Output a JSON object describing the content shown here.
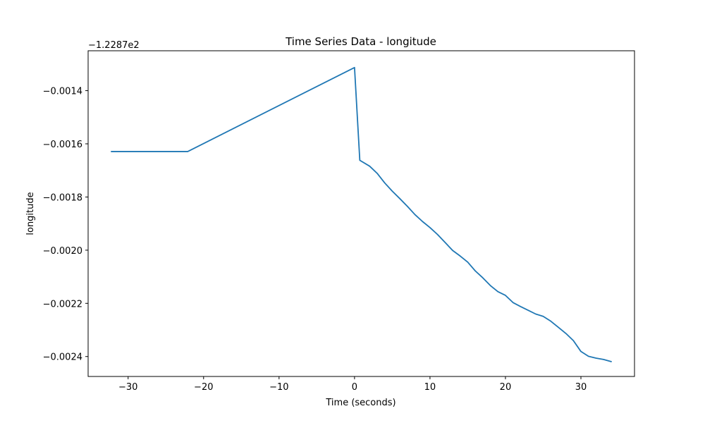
{
  "chart_data": {
    "type": "line",
    "title": "Time Series Data - longitude",
    "xlabel": "Time (seconds)",
    "ylabel": "longitude",
    "y_offset_label": "−1.2287e2",
    "xlim": [
      -35.3,
      37.1
    ],
    "ylim": [
      -0.002475,
      -0.00125
    ],
    "x_ticks": [
      -30,
      -20,
      -10,
      0,
      10,
      20,
      30
    ],
    "x_tick_labels": [
      "−30",
      "−20",
      "−10",
      "0",
      "10",
      "20",
      "30"
    ],
    "y_ticks": [
      -0.0014,
      -0.0016,
      -0.0018,
      -0.002,
      -0.0022,
      -0.0024
    ],
    "y_tick_labels": [
      "−0.0014",
      "−0.0016",
      "−0.0018",
      "−0.0020",
      "−0.0022",
      "−0.0024"
    ],
    "grid": false,
    "legend": "none",
    "series": [
      {
        "color": "#1f77b4",
        "x": [
          -32.2,
          -22.1,
          0.0,
          0.7,
          2.0,
          3.0,
          4.0,
          5.0,
          6.0,
          7.0,
          8.0,
          9.0,
          10.0,
          11.0,
          12.0,
          13.0,
          14.0,
          15.0,
          16.0,
          17.0,
          18.0,
          19.0,
          20.0,
          21.0,
          22.0,
          23.0,
          24.0,
          25.0,
          26.0,
          27.0,
          28.0,
          29.0,
          30.0,
          31.0,
          32.0,
          33.0,
          34.0
        ],
        "y": [
          -0.001629,
          -0.001629,
          -0.001313,
          -0.001662,
          -0.001684,
          -0.001711,
          -0.001747,
          -0.001778,
          -0.001806,
          -0.001835,
          -0.001866,
          -0.001892,
          -0.001915,
          -0.001941,
          -0.001971,
          -0.002001,
          -0.002022,
          -0.002045,
          -0.002078,
          -0.002104,
          -0.002133,
          -0.002156,
          -0.00217,
          -0.002197,
          -0.002212,
          -0.002226,
          -0.00224,
          -0.002249,
          -0.002267,
          -0.00229,
          -0.002313,
          -0.00234,
          -0.002381,
          -0.002399,
          -0.002406,
          -0.002411,
          -0.002419
        ]
      }
    ]
  }
}
